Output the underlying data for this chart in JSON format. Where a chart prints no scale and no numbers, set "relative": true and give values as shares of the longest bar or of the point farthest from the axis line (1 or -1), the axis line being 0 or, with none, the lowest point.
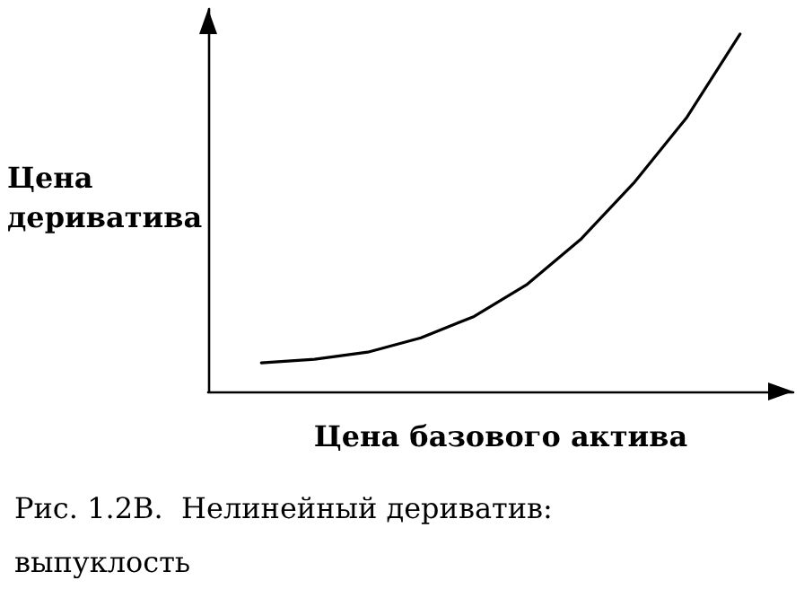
{
  "chart_data": {
    "type": "line",
    "relative": true,
    "xlabel": "Цена базового актива",
    "ylabel": "Цена\nдериватива",
    "annotations": [
      "Рис. 1.2B.  Нелинейный дериватив: выпуклость"
    ],
    "categories": [
      null,
      null,
      null,
      null,
      null,
      null,
      null,
      null,
      null,
      null,
      null,
      null
    ],
    "series": [
      {
        "color": "#000000",
        "values": [
          null,
          0.08,
          0.09,
          0.11,
          0.15,
          0.21,
          0.3,
          0.425,
          0.583,
          0.767,
          1,
          null
        ]
      }
    ],
    "grid": false,
    "marker": "none",
    "line_style": "solid"
  }
}
